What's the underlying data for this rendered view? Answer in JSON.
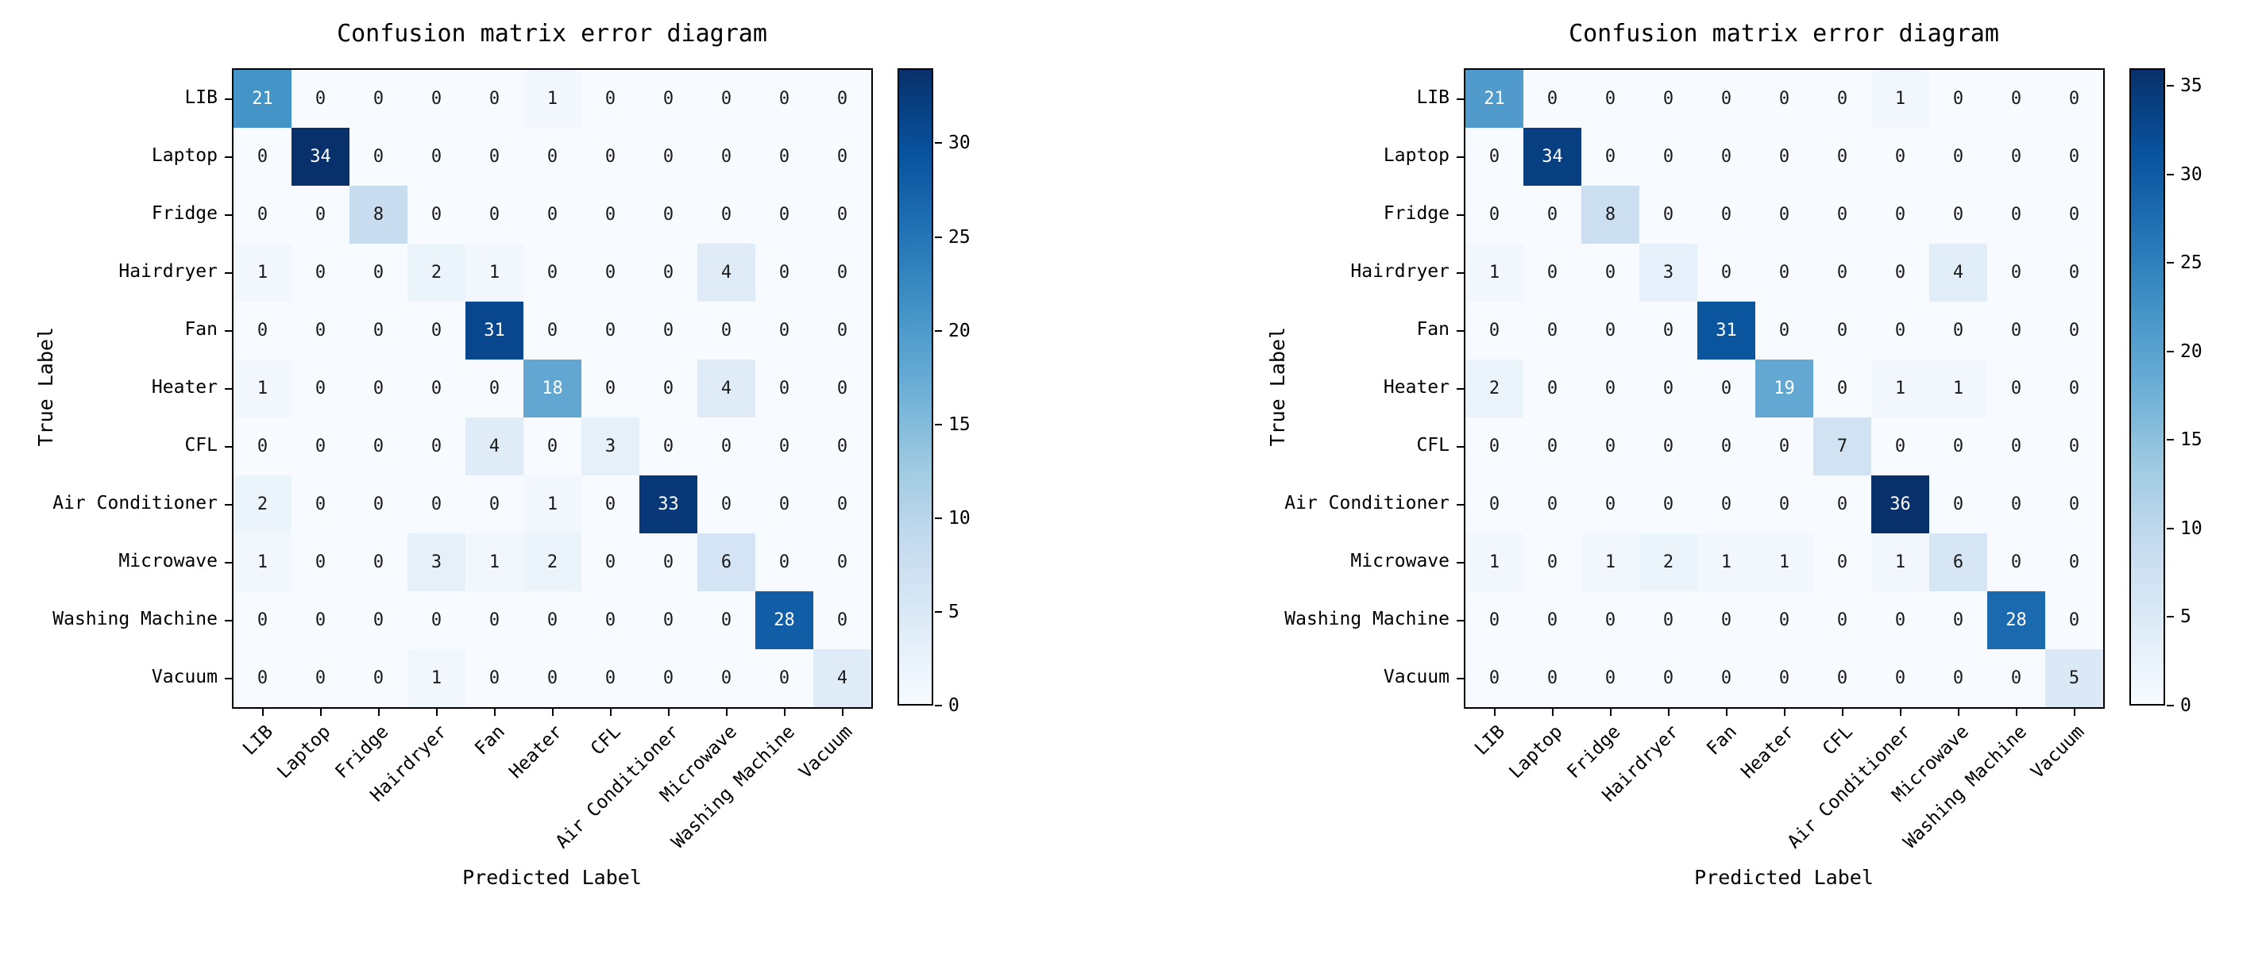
{
  "chart_data": [
    {
      "type": "heatmap",
      "title": "Confusion matrix error diagram",
      "xlabel": "Predicted Label",
      "ylabel": "True Label",
      "colormap": "Blues",
      "legend_position": "right-colorbar",
      "labels": [
        "LIB",
        "Laptop",
        "Fridge",
        "Hairdryer",
        "Fan",
        "Heater",
        "CFL",
        "Air Conditioner",
        "Microwave",
        "Washing Machine",
        "Vacuum"
      ],
      "matrix": [
        [
          21,
          0,
          0,
          0,
          0,
          1,
          0,
          0,
          0,
          0,
          0
        ],
        [
          0,
          34,
          0,
          0,
          0,
          0,
          0,
          0,
          0,
          0,
          0
        ],
        [
          0,
          0,
          8,
          0,
          0,
          0,
          0,
          0,
          0,
          0,
          0
        ],
        [
          1,
          0,
          0,
          2,
          1,
          0,
          0,
          0,
          4,
          0,
          0
        ],
        [
          0,
          0,
          0,
          0,
          31,
          0,
          0,
          0,
          0,
          0,
          0
        ],
        [
          1,
          0,
          0,
          0,
          0,
          18,
          0,
          0,
          4,
          0,
          0
        ],
        [
          0,
          0,
          0,
          0,
          4,
          0,
          3,
          0,
          0,
          0,
          0
        ],
        [
          2,
          0,
          0,
          0,
          0,
          1,
          0,
          33,
          0,
          0,
          0
        ],
        [
          1,
          0,
          0,
          3,
          1,
          2,
          0,
          0,
          6,
          0,
          0
        ],
        [
          0,
          0,
          0,
          0,
          0,
          0,
          0,
          0,
          0,
          28,
          0
        ],
        [
          0,
          0,
          0,
          1,
          0,
          0,
          0,
          0,
          0,
          0,
          4
        ]
      ],
      "vmin": 0,
      "vmax": 34,
      "colorbar_ticks": [
        0,
        5,
        10,
        15,
        20,
        25,
        30
      ]
    },
    {
      "type": "heatmap",
      "title": "Confusion matrix error diagram",
      "xlabel": "Predicted Label",
      "ylabel": "True Label",
      "colormap": "Blues",
      "legend_position": "right-colorbar",
      "labels": [
        "LIB",
        "Laptop",
        "Fridge",
        "Hairdryer",
        "Fan",
        "Heater",
        "CFL",
        "Air Conditioner",
        "Microwave",
        "Washing Machine",
        "Vacuum"
      ],
      "matrix": [
        [
          21,
          0,
          0,
          0,
          0,
          0,
          0,
          1,
          0,
          0,
          0
        ],
        [
          0,
          34,
          0,
          0,
          0,
          0,
          0,
          0,
          0,
          0,
          0
        ],
        [
          0,
          0,
          8,
          0,
          0,
          0,
          0,
          0,
          0,
          0,
          0
        ],
        [
          1,
          0,
          0,
          3,
          0,
          0,
          0,
          0,
          4,
          0,
          0
        ],
        [
          0,
          0,
          0,
          0,
          31,
          0,
          0,
          0,
          0,
          0,
          0
        ],
        [
          2,
          0,
          0,
          0,
          0,
          19,
          0,
          1,
          1,
          0,
          0
        ],
        [
          0,
          0,
          0,
          0,
          0,
          0,
          7,
          0,
          0,
          0,
          0
        ],
        [
          0,
          0,
          0,
          0,
          0,
          0,
          0,
          36,
          0,
          0,
          0
        ],
        [
          1,
          0,
          1,
          2,
          1,
          1,
          0,
          1,
          6,
          0,
          0
        ],
        [
          0,
          0,
          0,
          0,
          0,
          0,
          0,
          0,
          0,
          28,
          0
        ],
        [
          0,
          0,
          0,
          0,
          0,
          0,
          0,
          0,
          0,
          0,
          5
        ]
      ],
      "vmin": 0,
      "vmax": 36,
      "colorbar_ticks": [
        0,
        5,
        10,
        15,
        20,
        25,
        30,
        35
      ]
    }
  ],
  "colors": {
    "colormap_low": "#f7fbff",
    "colormap_high": "#08306b",
    "cell_text_dark": "#1a1a1a",
    "cell_text_light": "#ffffff",
    "axes": "#000000",
    "background": "#ffffff"
  }
}
